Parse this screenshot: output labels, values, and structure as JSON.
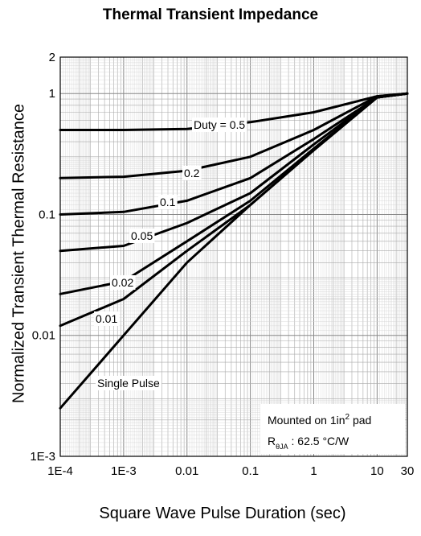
{
  "chart_data": {
    "type": "line",
    "title": "Thermal Transient Impedance",
    "xlabel": "Square Wave Pulse Duration (sec)",
    "ylabel": "Normalized Transient Thermal Resistance",
    "x_scale": "log",
    "y_scale": "log",
    "xlim": [
      0.0001,
      30
    ],
    "ylim": [
      0.001,
      2
    ],
    "x_ticks": [
      {
        "value": 0.0001,
        "label": "1E-4"
      },
      {
        "value": 0.001,
        "label": "1E-3"
      },
      {
        "value": 0.01,
        "label": "0.01"
      },
      {
        "value": 0.1,
        "label": "0.1"
      },
      {
        "value": 1,
        "label": "1"
      },
      {
        "value": 10,
        "label": "10"
      },
      {
        "value": 30,
        "label": "30"
      }
    ],
    "y_ticks": [
      {
        "value": 0.001,
        "label": "1E-3"
      },
      {
        "value": 0.01,
        "label": "0.01"
      },
      {
        "value": 0.1,
        "label": "0.1"
      },
      {
        "value": 1,
        "label": "1"
      },
      {
        "value": 2,
        "label": "2"
      }
    ],
    "grid": true,
    "series": [
      {
        "name": "Duty = 0.5",
        "x": [
          0.0001,
          0.001,
          0.01,
          0.1,
          1,
          10,
          30
        ],
        "y": [
          0.5,
          0.5,
          0.51,
          0.58,
          0.7,
          0.95,
          1.0
        ]
      },
      {
        "name": "0.2",
        "x": [
          0.0001,
          0.001,
          0.01,
          0.1,
          1,
          10,
          30
        ],
        "y": [
          0.2,
          0.205,
          0.23,
          0.3,
          0.5,
          0.95,
          1.0
        ]
      },
      {
        "name": "0.1",
        "x": [
          0.0001,
          0.001,
          0.01,
          0.1,
          1,
          10,
          30
        ],
        "y": [
          0.1,
          0.105,
          0.13,
          0.2,
          0.42,
          0.93,
          1.0
        ]
      },
      {
        "name": "0.05",
        "x": [
          0.0001,
          0.001,
          0.01,
          0.1,
          1,
          10,
          30
        ],
        "y": [
          0.05,
          0.055,
          0.085,
          0.15,
          0.38,
          0.93,
          1.0
        ]
      },
      {
        "name": "0.02",
        "x": [
          0.0001,
          0.001,
          0.01,
          0.1,
          1,
          10,
          30
        ],
        "y": [
          0.022,
          0.028,
          0.06,
          0.13,
          0.35,
          0.93,
          1.0
        ]
      },
      {
        "name": "0.01",
        "x": [
          0.0001,
          0.001,
          0.01,
          0.1,
          1,
          10,
          30
        ],
        "y": [
          0.012,
          0.02,
          0.05,
          0.12,
          0.34,
          0.93,
          1.0
        ]
      },
      {
        "name": "Single Pulse",
        "x": [
          0.0001,
          0.001,
          0.01,
          0.1,
          1,
          10,
          30
        ],
        "y": [
          0.0025,
          0.01,
          0.04,
          0.12,
          0.34,
          0.93,
          1.0
        ]
      }
    ],
    "annotations": [
      {
        "text_main": "Mounted on 1in",
        "text_sup": "2",
        "text_tail": " pad"
      },
      {
        "text_main": "R",
        "text_sub": "θJA",
        "text_tail": " : 62.5 °C/W"
      }
    ]
  }
}
